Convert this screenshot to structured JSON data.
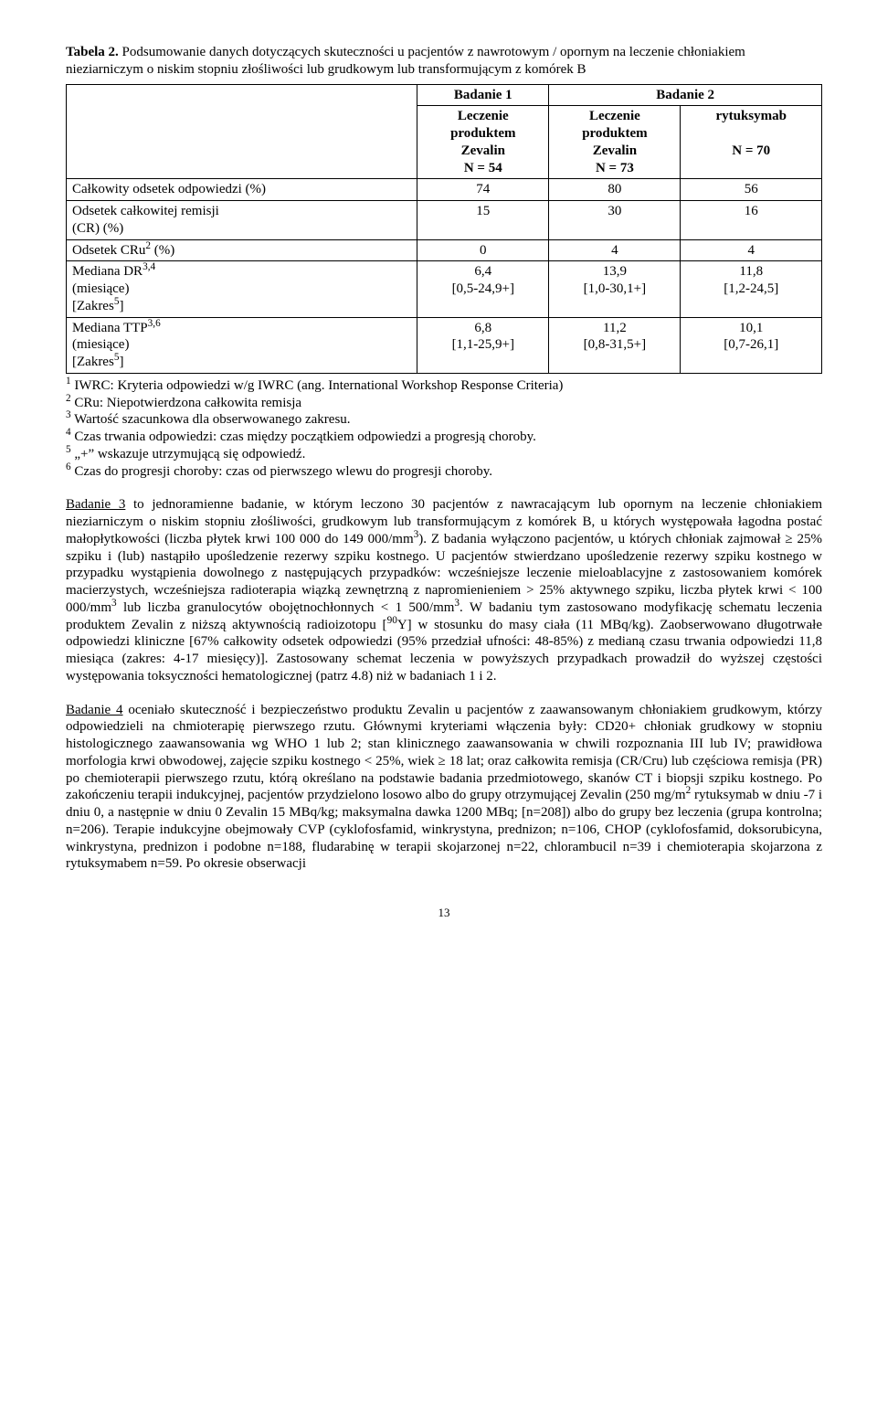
{
  "caption": {
    "lead": "Tabela 2.",
    "text": " Podsumowanie danych dotyczących skuteczności u pacjentów z nawrotowym / opornym na leczenie chłoniakiem nieziarniczym o niskim stopniu złośliwości lub grudkowym lub transformującym z komórek B"
  },
  "table": {
    "head": {
      "study1": "Badanie 1",
      "study2": "Badanie 2",
      "arm1": {
        "l1": "Leczenie",
        "l2": "produktem",
        "l3": "Zevalin",
        "l4": "N = 54"
      },
      "arm2": {
        "l1": "Leczenie",
        "l2": "produktem",
        "l3": "Zevalin",
        "l4": "N = 73"
      },
      "arm3": {
        "l1": "rytuksymab",
        "l2": "N = 70"
      }
    },
    "rows": {
      "orr": {
        "label": "Całkowity odsetek odpowiedzi (%)",
        "v1": "74",
        "v2": "80",
        "v3": "56"
      },
      "cr": {
        "label_a": "Odsetek całkowitej remisji",
        "label_b": "(CR) (%)",
        "v1": "15",
        "v2": "30",
        "v3": "16"
      },
      "cru": {
        "label_html": "Odsetek CRu<sup>2</sup> (%)",
        "v1": "0",
        "v2": "4",
        "v3": "4"
      },
      "dr": {
        "label_html": "Mediana DR<sup>3,4</sup><br>(miesiące)<br>[Zakres<sup>5</sup>]",
        "v1_a": "6,4",
        "v1_b": "[0,5-24,9+]",
        "v2_a": "13,9",
        "v2_b": "[1,0-30,1+]",
        "v3_a": "11,8",
        "v3_b": "[1,2-24,5]"
      },
      "ttp": {
        "label_html": "Mediana TTP<sup>3,6</sup><br>(miesiące)<br>[Zakres<sup>5</sup>]",
        "v1_a": "6,8",
        "v1_b": "[1,1-25,9+]",
        "v2_a": "11,2",
        "v2_b": "[0,8-31,5+]",
        "v3_a": "10,1",
        "v3_b": "[0,7-26,1]"
      }
    }
  },
  "footnotes": {
    "f1": "IWRC: Kryteria odpowiedzi w/g IWRC (ang. International Workshop Response Criteria)",
    "f2": "CRu: Niepotwierdzona całkowita remisja",
    "f3": "Wartość szacunkowa dla obserwowanego zakresu.",
    "f4": "Czas trwania odpowiedzi: czas między początkiem odpowiedzi a progresją choroby.",
    "f5": "„+” wskazuje utrzymującą się odpowiedź.",
    "f6": "Czas do progresji choroby: czas od pierwszego wlewu do progresji choroby."
  },
  "para1": {
    "lead": "Badanie 3",
    "text_html": " to jednoramienne badanie, w którym leczono 30 pacjentów z nawracającym lub opornym na leczenie chłoniakiem nieziarniczym o niskim stopniu złośliwości, grudkowym lub transformującym z komórek B, u których występowała łagodna postać małopłytkowości (liczba płytek krwi 100 000 do 149 000/mm<sup>3</sup>). Z badania wyłączono pacjentów, u których chłoniak zajmował ≥ 25% szpiku i (lub) nastąpiło upośledzenie rezerwy szpiku kostnego. U pacjentów stwierdzano upośledzenie rezerwy szpiku kostnego w przypadku wystąpienia dowolnego z następujących przypadków: wcześniejsze leczenie mieloablacyjne z zastosowaniem komórek macierzystych, wcześniejsza radioterapia wiązką zewnętrzną z napromienieniem > 25% aktywnego szpiku, liczba płytek krwi < 100 000/mm<sup>3</sup> lub liczba granulocytów obojętnochłonnych < 1 500/mm<sup>3</sup>. W badaniu tym zastosowano modyfikację schematu leczenia produktem Zevalin z niższą aktywnością radioizotopu [<sup>90</sup>Y] w stosunku do masy ciała (11 MBq/kg). Zaobserwowano długotrwałe odpowiedzi kliniczne [67% całkowity odsetek odpowiedzi (95% przedział ufności: 48-85%) z medianą czasu trwania odpowiedzi 11,8 miesiąca (zakres: 4-17 miesięcy)]. Zastosowany schemat leczenia w powyższych przypadkach prowadził do wyższej częstości występowania toksyczności hematologicznej (patrz 4.8) niż w badaniach 1 i 2."
  },
  "para2": {
    "lead": "Badanie 4",
    "text_html": " oceniało skuteczność i bezpieczeństwo produktu Zevalin u pacjentów z zaawansowanym chłoniakiem grudkowym, którzy odpowiedzieli na chmioterapię pierwszego rzutu. Głównymi kryteriami włączenia były: CD20+ chłoniak grudkowy w stopniu histologicznego zaawansowania wg WHO 1 lub 2; stan klinicznego zaawansowania w chwili rozpoznania III lub IV; prawidłowa morfologia krwi obwodowej, zajęcie szpiku kostnego < 25%, wiek ≥ 18 lat; oraz całkowita remisja (CR/Cru) lub częściowa remisja (PR) po chemioterapii pierwszego rzutu, którą określano na podstawie badania przedmiotowego, skanów CT i biopsji szpiku kostnego. Po zakończeniu terapii indukcyjnej, pacjentów przydzielono losowo albo do grupy otrzymującej Zevalin (250 mg/m<sup>2</sup> rytuksymab w dniu -7 i dniu 0, a następnie w dniu 0 Zevalin 15 MBq/kg; maksymalna dawka 1200 MBq; [n=208]) albo do grupy bez leczenia (grupa kontrolna; n=206). Terapie indukcyjne obejmowały CVP (cyklofosfamid, winkrystyna, prednizon; n=106, CHOP (cyklofosfamid, doksorubicyna, winkrystyna, prednizon i podobne n=188, fludarabinę w terapii skojarzonej n=22, chlorambucil n=39 i chemioterapia skojarzona z rytuksymabem n=59. Po okresie obserwacji"
  },
  "pagenum": "13"
}
